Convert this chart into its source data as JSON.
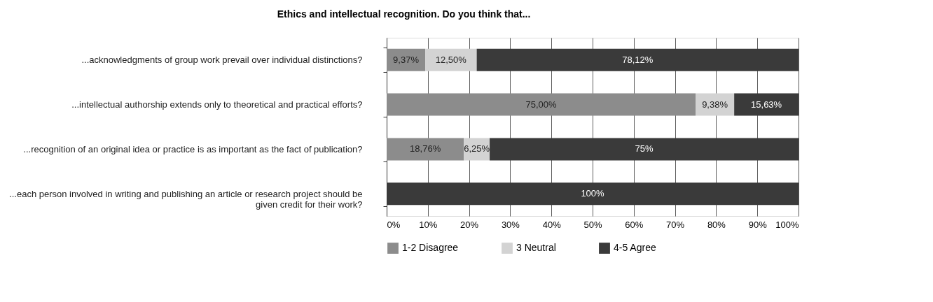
{
  "chart_data": {
    "type": "bar",
    "orientation": "horizontal",
    "stacked": true,
    "title": "Ethics and intellectual recognition. Do you think that...",
    "categories": [
      "...acknowledgments of group work prevail over individual distinctions?",
      "...intellectual authorship extends only to theoretical and practical efforts?",
      "...recognition of an original idea or practice is as important as the fact of publication?",
      "...each person involved in writing and publishing an article or research project should be given credit for their work?"
    ],
    "series": [
      {
        "name": "1-2 Disagree",
        "color": "#8c8c8c",
        "values": [
          9.37,
          75.0,
          18.76,
          0
        ],
        "value_labels": [
          "9,37%",
          "75,00%",
          "18,76%",
          null
        ]
      },
      {
        "name": "3 Neutral",
        "color": "#d3d3d3",
        "values": [
          12.5,
          9.38,
          6.25,
          0
        ],
        "value_labels": [
          "12,50%",
          "9,38%",
          "6,25%",
          null
        ]
      },
      {
        "name": "4-5 Agree",
        "color": "#3a3a3a",
        "values": [
          78.12,
          15.63,
          75,
          100
        ],
        "value_labels": [
          "78,12%",
          "15,63%",
          "75%",
          "100%"
        ]
      }
    ],
    "xlim": [
      0,
      100
    ],
    "xticks": [
      {
        "value": 0,
        "label": "0%"
      },
      {
        "value": 10,
        "label": "10%"
      },
      {
        "value": 20,
        "label": "20%"
      },
      {
        "value": 30,
        "label": "30%"
      },
      {
        "value": 40,
        "label": "40%"
      },
      {
        "value": 50,
        "label": "50%"
      },
      {
        "value": 60,
        "label": "60%"
      },
      {
        "value": 70,
        "label": "70%"
      },
      {
        "value": 80,
        "label": "80%"
      },
      {
        "value": 90,
        "label": "90%"
      },
      {
        "value": 100,
        "label": "100%"
      }
    ],
    "grid": "x",
    "legend": "bottom"
  }
}
